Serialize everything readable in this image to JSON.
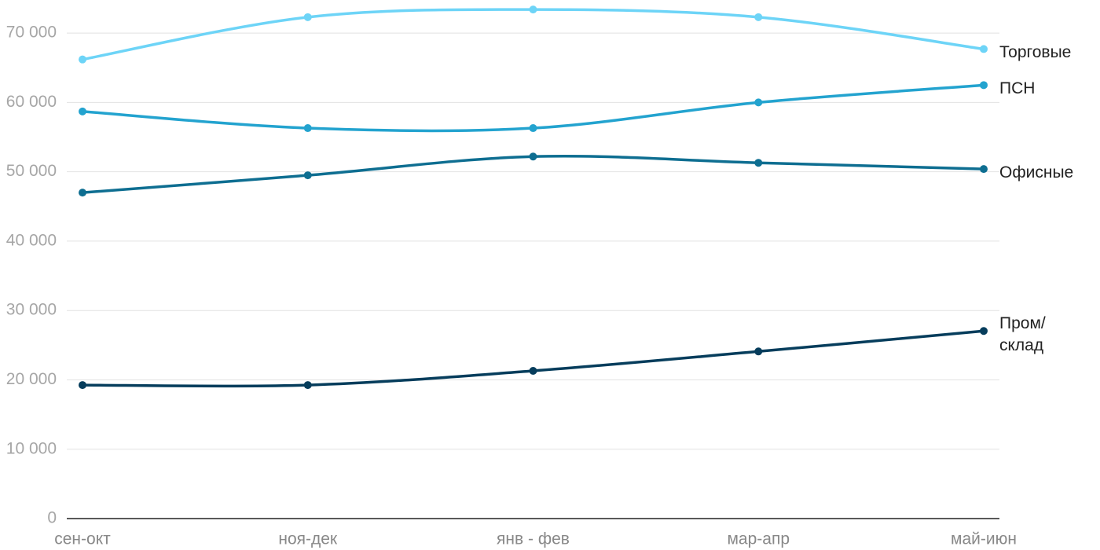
{
  "chart_data": {
    "type": "line",
    "categories": [
      "сен-окт",
      "ноя-дек",
      "янв - фев",
      "мар-апр",
      "май-июн"
    ],
    "series": [
      {
        "name": "Торговые",
        "color": "#6dd4f7",
        "values": [
          66200,
          72300,
          73400,
          72300,
          67700
        ]
      },
      {
        "name": "ПСН",
        "color": "#23a3cf",
        "values": [
          58700,
          56300,
          56300,
          60000,
          62500
        ]
      },
      {
        "name": "Офисные",
        "color": "#0e6e91",
        "values": [
          47000,
          49500,
          52200,
          51300,
          50400
        ]
      },
      {
        "name": "Пром/\nсклад",
        "color": "#063d5c",
        "values": [
          19250,
          19250,
          21300,
          24100,
          27050
        ]
      }
    ],
    "ylim": [
      0,
      75000
    ],
    "yticks": [
      0,
      {
        "value": 10000,
        "label": "10 000"
      },
      {
        "value": 20000,
        "label": "20 000"
      },
      {
        "value": 30000,
        "label": "30 000"
      },
      {
        "value": 40000,
        "label": "40 000"
      },
      {
        "value": 50000,
        "label": "50 000"
      },
      {
        "value": 60000,
        "label": "60 000"
      },
      {
        "value": 70000,
        "label": "70 000"
      }
    ],
    "grid": true
  }
}
